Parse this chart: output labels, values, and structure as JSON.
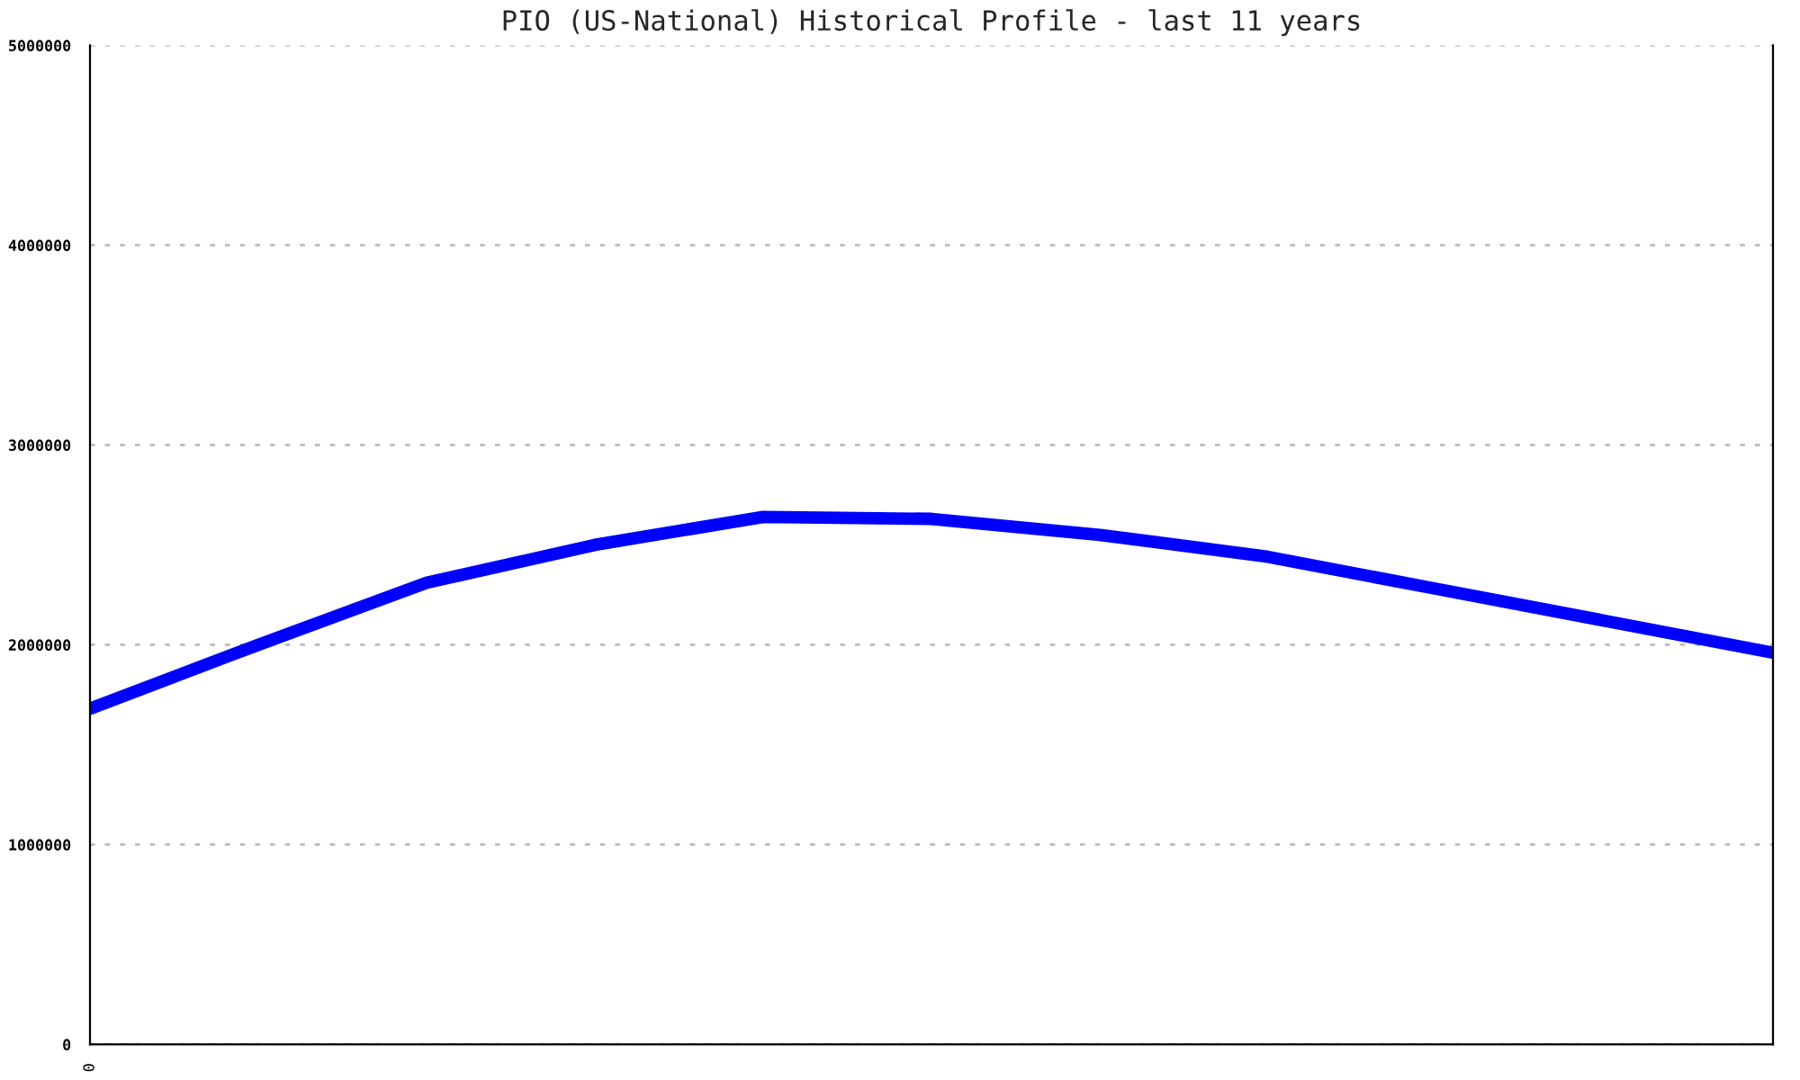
{
  "chart_data": {
    "type": "line",
    "title": "PIO (US-National) Historical Profile - last 11 years",
    "categories": [
      "0",
      null,
      null,
      null,
      null,
      null,
      null,
      null,
      null,
      null,
      null
    ],
    "series": [
      {
        "color": "#0000ff",
        "values": [
          1680000,
          2000000,
          2310000,
          2500000,
          2640000,
          2630000,
          2550000,
          2440000,
          2280000,
          2120000,
          1960000
        ]
      }
    ],
    "ylim": [
      0,
      5000000
    ],
    "yticks": [
      0,
      1000000,
      2000000,
      3000000,
      4000000,
      5000000
    ],
    "grid": "y",
    "line_style": "solid",
    "marker": "none"
  }
}
